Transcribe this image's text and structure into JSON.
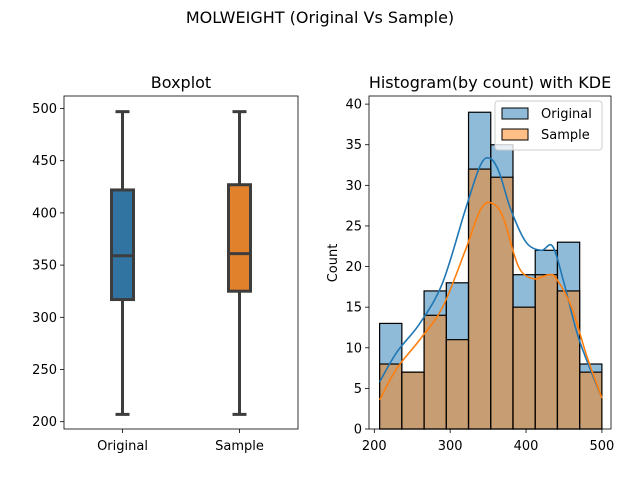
{
  "figure": {
    "suptitle": "MOLWEIGHT (Original Vs Sample)"
  },
  "chart_data": [
    {
      "type": "box",
      "title": "Boxplot",
      "xlabel": "",
      "ylabel": "",
      "ylim": [
        193,
        512
      ],
      "yticks": [
        200,
        250,
        300,
        350,
        400,
        450,
        500
      ],
      "categories": [
        "Original",
        "Sample"
      ],
      "boxes": [
        {
          "category": "Original",
          "whislo": 207,
          "q1": 317,
          "median": 359,
          "q3": 422,
          "whishi": 497,
          "color": "#3274a1"
        },
        {
          "category": "Sample",
          "whislo": 207,
          "q1": 325,
          "median": 361,
          "q3": 427,
          "whishi": 497,
          "color": "#e1812c"
        }
      ],
      "grid": false
    },
    {
      "type": "histogram",
      "title": "Histogram(by count) with KDE",
      "xlabel": "",
      "ylabel": "Count",
      "xlim": [
        193,
        512
      ],
      "ylim": [
        0,
        41
      ],
      "xticks": [
        200,
        300,
        400,
        500
      ],
      "yticks": [
        0,
        5,
        10,
        15,
        20,
        25,
        30,
        35,
        40
      ],
      "bin_edges": [
        207,
        236.3,
        265.6,
        294.9,
        324.2,
        353.5,
        382.8,
        412.1,
        441.4,
        470.7,
        500
      ],
      "legend_position": "top-right",
      "series": [
        {
          "name": "Original",
          "color": "#1f77b4",
          "counts": [
            13,
            7,
            17,
            18,
            39,
            35,
            19,
            22,
            23,
            8
          ],
          "kde_x": [
            207,
            230,
            260,
            290,
            320,
            340,
            353,
            365,
            380,
            400,
            420,
            435,
            450,
            470,
            500
          ],
          "kde_y": [
            5.8,
            9.5,
            13,
            18,
            27,
            32.5,
            33.3,
            31.5,
            27,
            23,
            22,
            22.5,
            18,
            11,
            3.8
          ]
        },
        {
          "name": "Sample",
          "color": "#ff7f0e",
          "counts": [
            8,
            7,
            14,
            11,
            32,
            31,
            15,
            19,
            17,
            7
          ],
          "kde_x": [
            207,
            230,
            260,
            290,
            320,
            340,
            355,
            370,
            390,
            410,
            430,
            440,
            460,
            480,
            500
          ],
          "kde_y": [
            3.6,
            7.5,
            11,
            15,
            22,
            27,
            27.8,
            26,
            20,
            18.5,
            19,
            18.5,
            15,
            9,
            3.8
          ]
        }
      ],
      "grid": false
    }
  ]
}
